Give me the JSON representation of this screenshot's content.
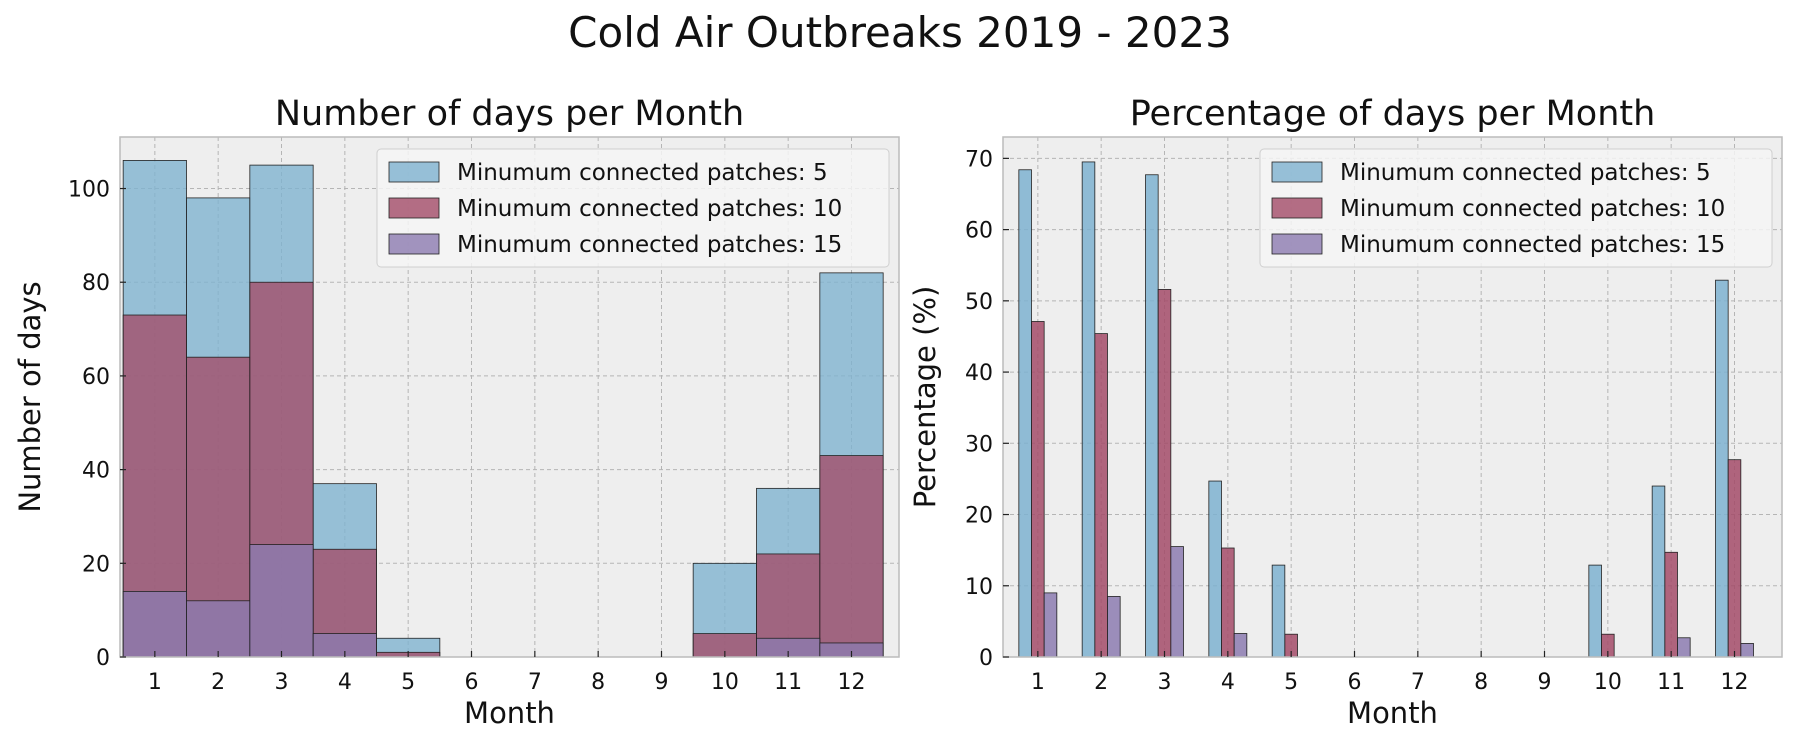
{
  "figure": {
    "suptitle": "Cold Air Outbreaks 2019 - 2023"
  },
  "colors": {
    "s5": "#7eb2d0",
    "s10": "#a34b68",
    "s15": "#8c7bb0",
    "panel_bg": "#eeeeee",
    "grid": "#b5b5b5"
  },
  "chart_data": [
    {
      "type": "bar",
      "title": "Number of days per Month",
      "xlabel": "Month",
      "ylabel": "Number of days",
      "categories": [
        "1",
        "2",
        "3",
        "4",
        "5",
        "6",
        "7",
        "8",
        "9",
        "10",
        "11",
        "12"
      ],
      "ylim": [
        0,
        111
      ],
      "yticks": [
        0,
        20,
        40,
        60,
        80,
        100
      ],
      "grid": true,
      "legend": "top-right",
      "series": [
        {
          "name": "Minumum connected patches: 5",
          "values": [
            106,
            98,
            105,
            37,
            4,
            0,
            0,
            0,
            0,
            20,
            36,
            82
          ]
        },
        {
          "name": "Minumum connected patches: 10",
          "values": [
            73,
            64,
            80,
            23,
            1,
            0,
            0,
            0,
            0,
            5,
            22,
            43
          ]
        },
        {
          "name": "Minumum connected patches: 15",
          "values": [
            14,
            12,
            24,
            5,
            0,
            0,
            0,
            0,
            0,
            0,
            4,
            3
          ]
        }
      ]
    },
    {
      "type": "bar",
      "title": "Percentage of days per Month",
      "xlabel": "Month",
      "ylabel": "Percentage (%)",
      "categories": [
        "1",
        "2",
        "3",
        "4",
        "5",
        "6",
        "7",
        "8",
        "9",
        "10",
        "11",
        "12"
      ],
      "ylim": [
        0,
        73
      ],
      "yticks": [
        0,
        10,
        20,
        30,
        40,
        50,
        60,
        70
      ],
      "grid": true,
      "legend": "top-right",
      "series": [
        {
          "name": "Minumum connected patches: 5",
          "values": [
            68.4,
            69.5,
            67.7,
            24.7,
            12.9,
            0,
            0,
            0,
            0,
            12.9,
            24.0,
            52.9
          ]
        },
        {
          "name": "Minumum connected patches: 10",
          "values": [
            47.1,
            45.4,
            51.6,
            15.3,
            3.2,
            0,
            0,
            0,
            0,
            3.2,
            14.7,
            27.7
          ]
        },
        {
          "name": "Minumum connected patches: 15",
          "values": [
            9.0,
            8.5,
            15.5,
            3.3,
            0,
            0,
            0,
            0,
            0,
            0,
            2.7,
            1.9
          ]
        }
      ]
    }
  ]
}
